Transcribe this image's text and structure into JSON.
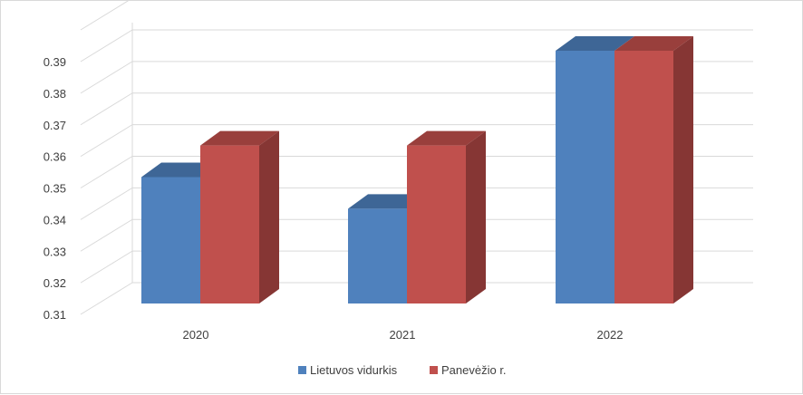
{
  "chart_data": {
    "type": "bar",
    "title": "",
    "xlabel": "",
    "ylabel": "",
    "categories": [
      "2020",
      "2021",
      "2022"
    ],
    "series": [
      {
        "name": "Lietuvos vidurkis",
        "values": [
          0.35,
          0.34,
          0.39
        ],
        "color": "#4f81bd",
        "side_color": "#3a6391",
        "top_color": "#3e6696"
      },
      {
        "name": "Panevėžio r.",
        "values": [
          0.36,
          0.36,
          0.39
        ],
        "color": "#c0504d",
        "side_color": "#863634",
        "top_color": "#993f3c"
      }
    ],
    "ylim": [
      0.31,
      0.39
    ],
    "yticks": [
      "0.31",
      "0.32",
      "0.33",
      "0.34",
      "0.35",
      "0.36",
      "0.37",
      "0.38",
      "0.39"
    ],
    "grid": true,
    "legend_position": "bottom",
    "style": "3d-clustered-column"
  }
}
